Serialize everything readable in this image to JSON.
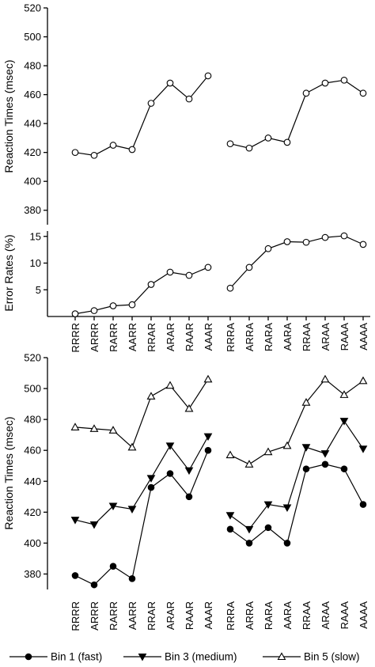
{
  "chart_data": [
    {
      "id": "panel1",
      "type": "line",
      "ylabel": "Reaction Times  (msec)",
      "ylim": [
        370,
        520
      ],
      "yticks": [
        380,
        400,
        420,
        440,
        460,
        480,
        500,
        520
      ],
      "y_tick_labels": [
        "380",
        "400",
        "420",
        "440",
        "460",
        "480",
        "500",
        "520"
      ],
      "categories": [
        "RRRR",
        "ARRR",
        "RARR",
        "AARR",
        "RRAR",
        "ARAR",
        "RAAR",
        "AAAR",
        "RRRA",
        "ARRA",
        "RARA",
        "AARA",
        "RRAA",
        "ARAA",
        "RAAA",
        "AAAA"
      ],
      "series": [
        {
          "marker": "circle-open",
          "values": [
            420,
            418,
            425,
            422,
            454,
            468,
            457,
            473,
            426,
            423,
            430,
            427,
            461,
            468,
            470,
            461
          ]
        }
      ]
    },
    {
      "id": "panel2",
      "type": "line",
      "ylabel": "Error Rates (%)",
      "ylim": [
        0,
        16
      ],
      "yticks": [
        5,
        10,
        15
      ],
      "y_tick_labels": [
        "5",
        "10",
        "15"
      ],
      "categories": [
        "RRRR",
        "ARRR",
        "RARR",
        "AARR",
        "RRAR",
        "ARAR",
        "RAAR",
        "AAAR",
        "RRRA",
        "ARRA",
        "RARA",
        "AARA",
        "RRAA",
        "ARAA",
        "RAAA",
        "AAAA"
      ],
      "series": [
        {
          "marker": "circle-open",
          "values": [
            0.5,
            1.1,
            2.0,
            2.2,
            6.0,
            8.3,
            7.7,
            9.2,
            5.3,
            9.2,
            12.7,
            14.0,
            13.9,
            14.8,
            15.1,
            13.5
          ]
        }
      ]
    },
    {
      "id": "panel3",
      "type": "line",
      "ylabel": "Reaction Times  (msec)",
      "ylim": [
        370,
        520
      ],
      "yticks": [
        380,
        400,
        420,
        440,
        460,
        480,
        500,
        520
      ],
      "y_tick_labels": [
        "380",
        "400",
        "420",
        "440",
        "460",
        "480",
        "500",
        "520"
      ],
      "categories": [
        "RRRR",
        "ARRR",
        "RARR",
        "AARR",
        "RRAR",
        "ARAR",
        "RAAR",
        "AAAR",
        "RRRA",
        "ARRA",
        "RARA",
        "AARA",
        "RRAA",
        "ARAA",
        "RAAA",
        "AAAA"
      ],
      "series": [
        {
          "name": "Bin 1 (fast)",
          "marker": "circle-filled",
          "values": [
            379,
            373,
            385,
            377,
            436,
            445,
            430,
            460,
            409,
            400,
            410,
            400,
            448,
            451,
            448,
            425
          ]
        },
        {
          "name": "Bin 3 (medium)",
          "marker": "triangle-down-filled",
          "values": [
            415,
            412,
            424,
            422,
            442,
            463,
            447,
            469,
            418,
            409,
            425,
            423,
            462,
            458,
            479,
            461
          ]
        },
        {
          "name": "Bin 5 (slow)",
          "marker": "triangle-up-open",
          "values": [
            475,
            474,
            473,
            462,
            495,
            502,
            487,
            506,
            457,
            451,
            459,
            463,
            491,
            506,
            496,
            505
          ]
        }
      ]
    }
  ],
  "legend": [
    {
      "label": "Bin 1 (fast)",
      "marker": "circle-filled"
    },
    {
      "label": "Bin 3 (medium)",
      "marker": "triangle-down-filled"
    },
    {
      "label": "Bin 5 (slow)",
      "marker": "triangle-up-open"
    }
  ]
}
